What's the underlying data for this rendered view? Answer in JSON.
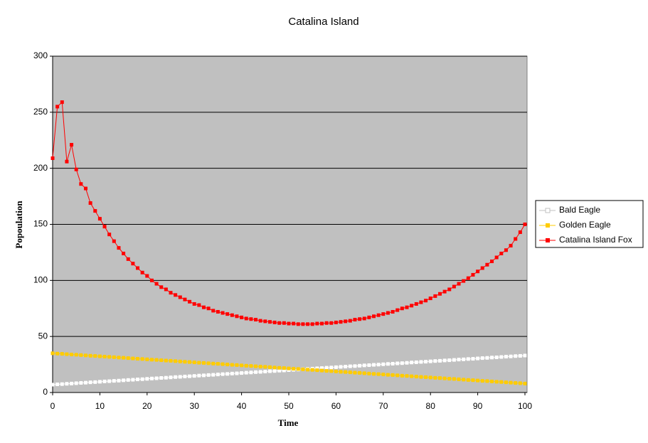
{
  "chart_data": {
    "type": "line",
    "title": "Catalina Island",
    "x_label": "Time",
    "y_label": "Popoulation",
    "x": [
      0,
      1,
      2,
      3,
      4,
      5,
      6,
      7,
      8,
      9,
      10,
      11,
      12,
      13,
      14,
      15,
      16,
      17,
      18,
      19,
      20,
      21,
      22,
      23,
      24,
      25,
      26,
      27,
      28,
      29,
      30,
      31,
      32,
      33,
      34,
      35,
      36,
      37,
      38,
      39,
      40,
      41,
      42,
      43,
      44,
      45,
      46,
      47,
      48,
      49,
      50,
      51,
      52,
      53,
      54,
      55,
      56,
      57,
      58,
      59,
      60,
      61,
      62,
      63,
      64,
      65,
      66,
      67,
      68,
      69,
      70,
      71,
      72,
      73,
      74,
      75,
      76,
      77,
      78,
      79,
      80,
      81,
      82,
      83,
      84,
      85,
      86,
      87,
      88,
      89,
      90,
      91,
      92,
      93,
      94,
      95,
      96,
      97,
      98,
      99,
      100
    ],
    "series": [
      {
        "name": "Bald Eagle",
        "color": "#ffffff",
        "values": [
          7.0,
          7.3,
          7.5,
          7.8,
          8.0,
          8.3,
          8.6,
          8.8,
          9.1,
          9.3,
          9.6,
          9.9,
          10.1,
          10.4,
          10.6,
          10.9,
          11.2,
          11.4,
          11.7,
          11.9,
          12.2,
          12.5,
          12.7,
          13.0,
          13.2,
          13.5,
          13.8,
          14.0,
          14.3,
          14.5,
          14.8,
          15.1,
          15.3,
          15.6,
          15.8,
          16.1,
          16.4,
          16.6,
          16.9,
          17.1,
          17.4,
          17.7,
          17.9,
          18.2,
          18.4,
          18.7,
          19.0,
          19.2,
          19.5,
          19.7,
          20.0,
          20.3,
          20.5,
          20.8,
          21.0,
          21.3,
          21.6,
          21.8,
          22.1,
          22.3,
          22.6,
          22.9,
          23.1,
          23.4,
          23.6,
          23.9,
          24.2,
          24.4,
          24.7,
          24.9,
          25.2,
          25.5,
          25.7,
          26.0,
          26.2,
          26.5,
          26.8,
          27.0,
          27.3,
          27.5,
          27.8,
          28.1,
          28.3,
          28.6,
          28.8,
          29.1,
          29.4,
          29.6,
          29.9,
          30.1,
          30.4,
          30.7,
          30.9,
          31.2,
          31.4,
          31.7,
          32.0,
          32.2,
          32.5,
          32.7,
          33.0
        ]
      },
      {
        "name": "Golden Eagle",
        "color": "#ffcc00",
        "values": [
          35.0,
          34.7,
          34.5,
          34.2,
          33.9,
          33.7,
          33.4,
          33.1,
          32.8,
          32.6,
          32.3,
          32.0,
          31.8,
          31.5,
          31.2,
          31.0,
          30.7,
          30.4,
          30.1,
          29.9,
          29.6,
          29.3,
          29.1,
          28.8,
          28.5,
          28.3,
          28.0,
          27.7,
          27.4,
          27.2,
          26.9,
          26.6,
          26.4,
          26.1,
          25.8,
          25.6,
          25.3,
          25.0,
          24.7,
          24.5,
          24.2,
          23.9,
          23.7,
          23.4,
          23.1,
          22.9,
          22.6,
          22.3,
          22.0,
          21.8,
          21.5,
          21.2,
          21.0,
          20.7,
          20.4,
          20.2,
          19.9,
          19.6,
          19.3,
          19.1,
          18.8,
          18.5,
          18.3,
          18.0,
          17.7,
          17.5,
          17.2,
          16.9,
          16.6,
          16.4,
          16.1,
          15.8,
          15.6,
          15.3,
          15.0,
          14.8,
          14.5,
          14.2,
          13.9,
          13.7,
          13.4,
          13.1,
          12.9,
          12.6,
          12.3,
          12.1,
          11.8,
          11.5,
          11.2,
          11.0,
          10.7,
          10.4,
          10.2,
          9.9,
          9.6,
          9.4,
          9.1,
          8.8,
          8.5,
          8.3,
          8.0
        ]
      },
      {
        "name": "Catalina Island Fox",
        "color": "#ff0000",
        "values": [
          209,
          255,
          259,
          206,
          221,
          199,
          186,
          182,
          169,
          162,
          155,
          148,
          141,
          135,
          129,
          124,
          119,
          115,
          111,
          107,
          104,
          100,
          97,
          94,
          92,
          89,
          87,
          85,
          83,
          81,
          79,
          78,
          76,
          75,
          73,
          72,
          71,
          70,
          69,
          68,
          67,
          66,
          65.5,
          65,
          64,
          63.5,
          63,
          62.5,
          62,
          62,
          61.5,
          61.5,
          61,
          61,
          61,
          61,
          61.5,
          61.5,
          62,
          62,
          62.5,
          63,
          63.5,
          64,
          65,
          65.5,
          66,
          67,
          68,
          69,
          70,
          71,
          72,
          73.5,
          75,
          76,
          77.5,
          79,
          80.5,
          82,
          84,
          86,
          88,
          90,
          92,
          94.5,
          97,
          99.5,
          102,
          105,
          108,
          111,
          114,
          117,
          120.5,
          124,
          127,
          131,
          137,
          143,
          150
        ]
      }
    ],
    "xlim": [
      0,
      100
    ],
    "xticks": [
      0,
      10,
      20,
      30,
      40,
      50,
      60,
      70,
      80,
      90,
      100
    ],
    "ylim": [
      0,
      300
    ],
    "yticks": [
      0,
      50,
      100,
      150,
      200,
      250,
      300
    ],
    "grid": true,
    "legend": "right"
  }
}
